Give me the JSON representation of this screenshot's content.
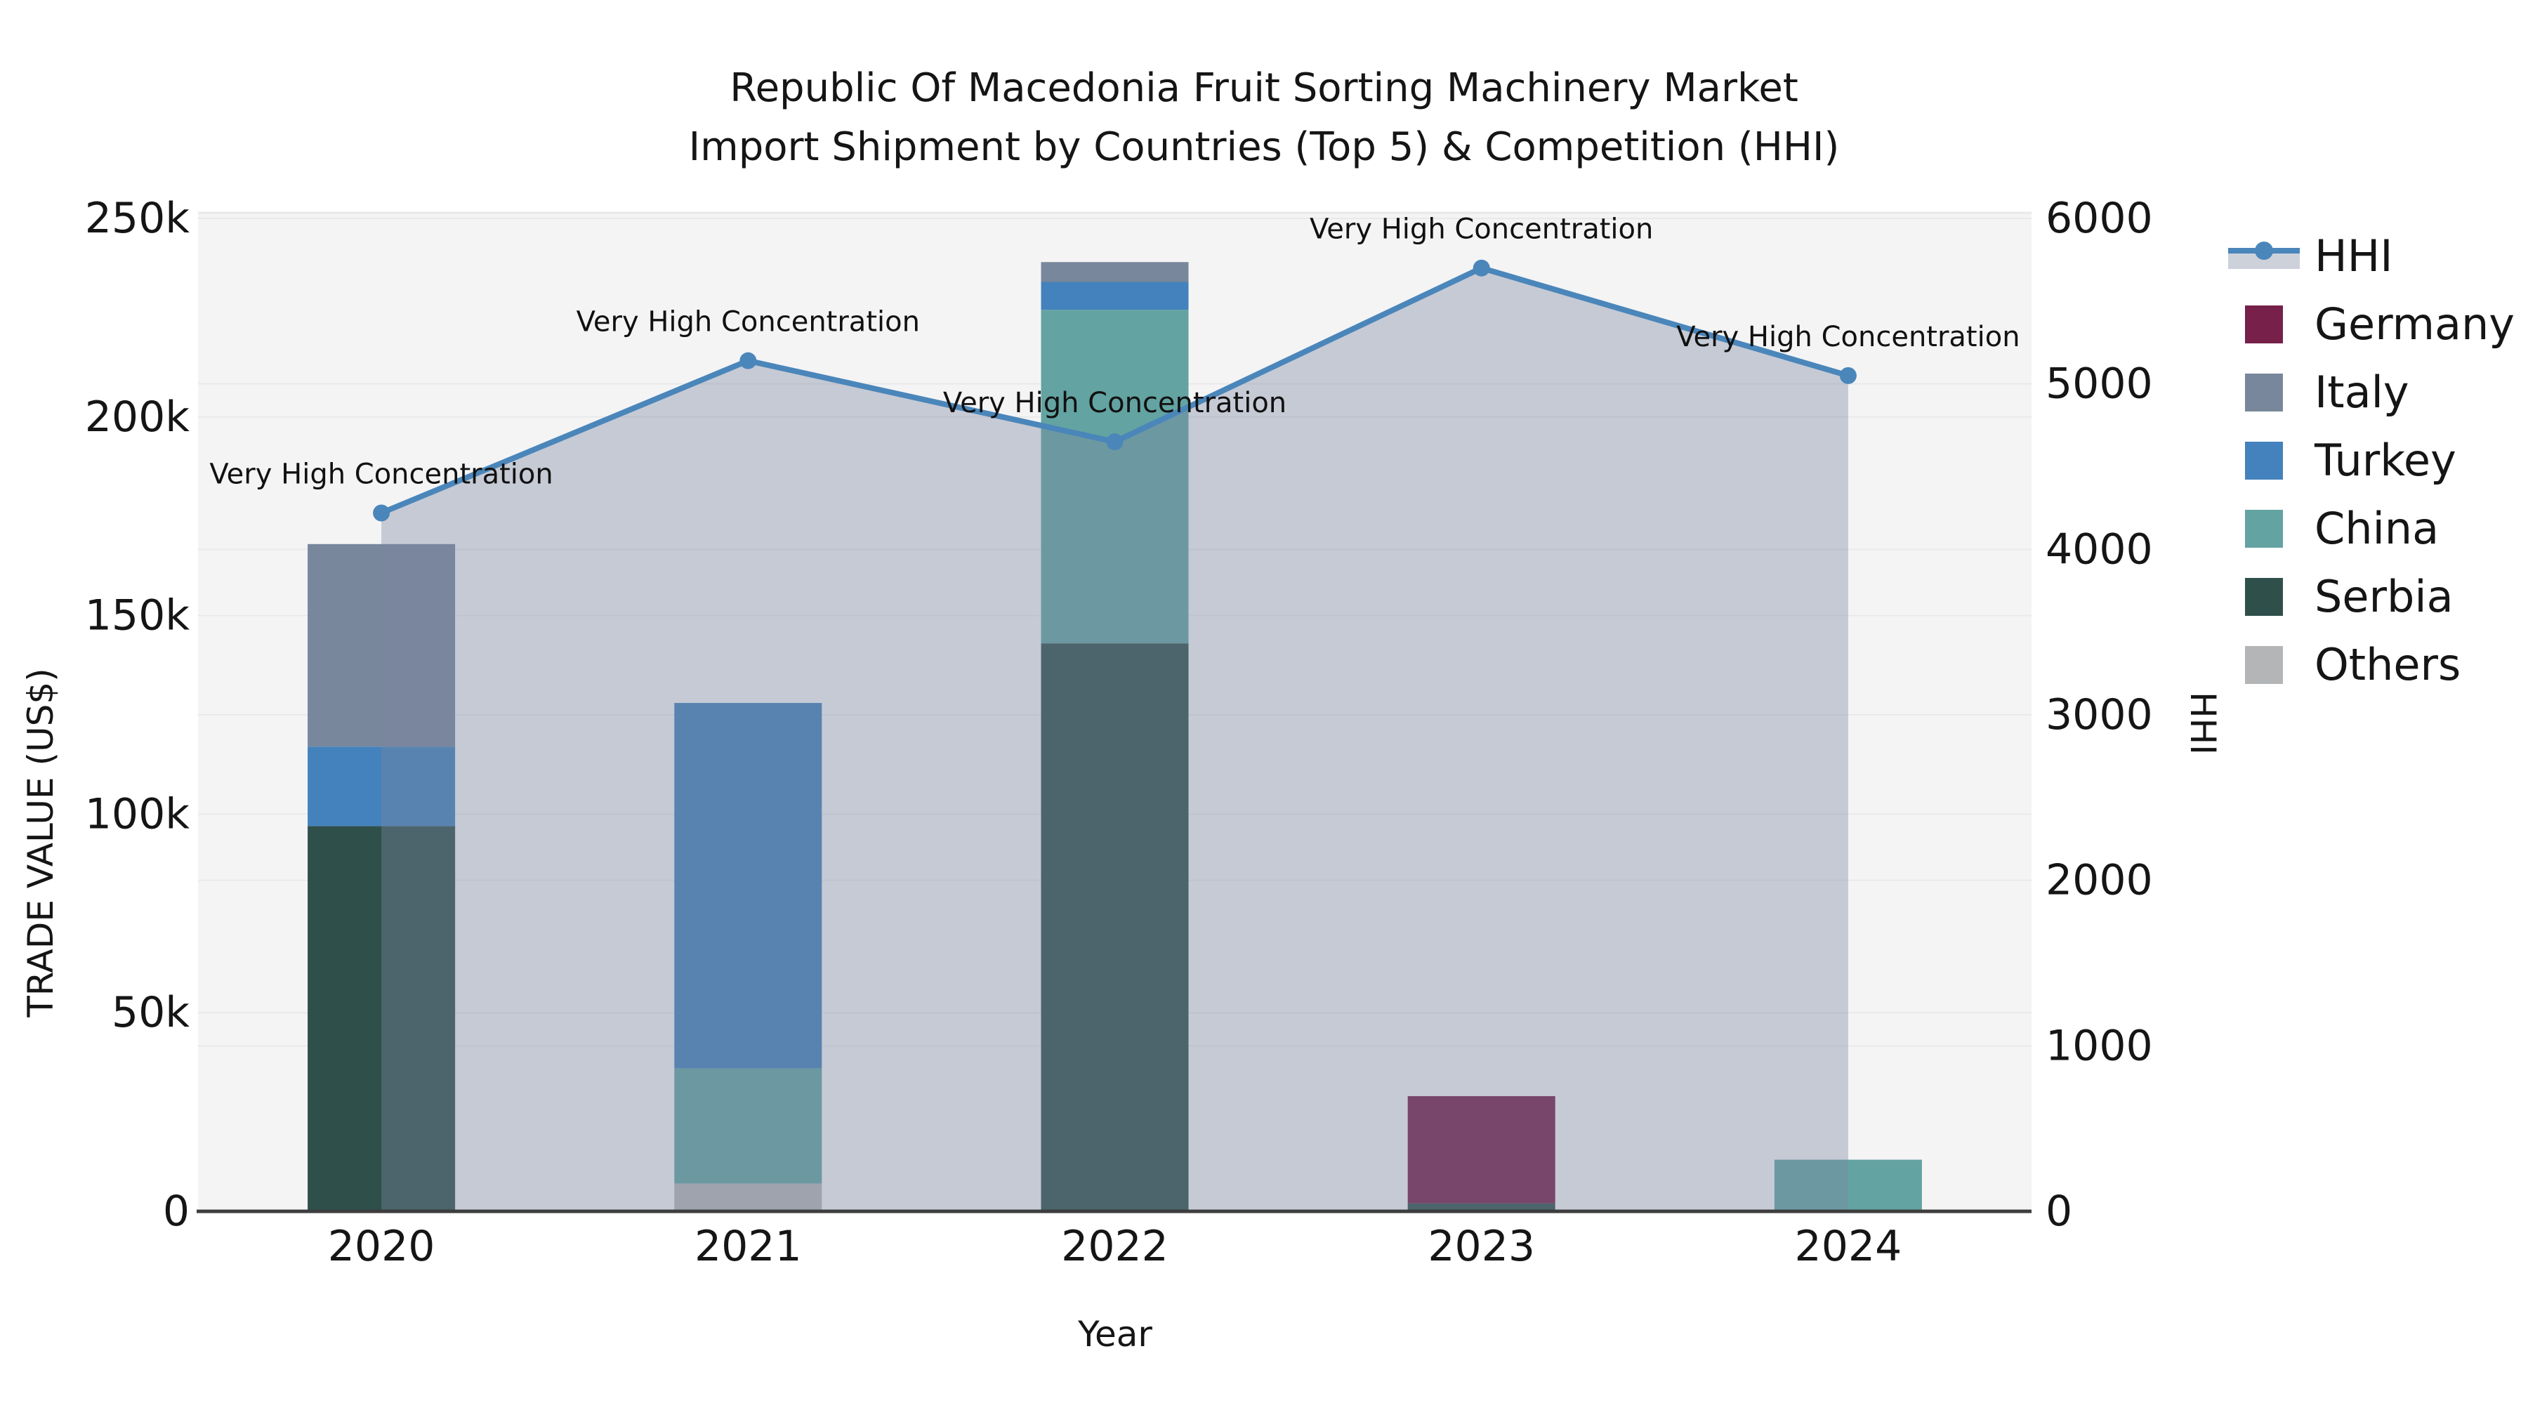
{
  "figure": {
    "title_line1": "Republic Of Macedonia Fruit Sorting Machinery Market",
    "title_line2": "Import Shipment by Countries (Top 5) & Competition (HHI)"
  },
  "axes": {
    "x_label": "Year",
    "y_left_label": "TRADE VALUE (US$)",
    "y_right_label": "HHI",
    "x_ticks": [
      "2020",
      "2021",
      "2022",
      "2023",
      "2024"
    ],
    "y_left_ticks": [
      {
        "v": 0,
        "label": "0"
      },
      {
        "v": 50000,
        "label": "50k"
      },
      {
        "v": 100000,
        "label": "100k"
      },
      {
        "v": 150000,
        "label": "150k"
      },
      {
        "v": 200000,
        "label": "200k"
      },
      {
        "v": 250000,
        "label": "250k"
      }
    ],
    "y_right_ticks": [
      {
        "v": 0,
        "label": "0"
      },
      {
        "v": 1000,
        "label": "1000"
      },
      {
        "v": 2000,
        "label": "2000"
      },
      {
        "v": 3000,
        "label": "3000"
      },
      {
        "v": 4000,
        "label": "4000"
      },
      {
        "v": 5000,
        "label": "5000"
      },
      {
        "v": 6000,
        "label": "6000"
      }
    ]
  },
  "chart_data": {
    "type": "bar+line",
    "title": "Republic Of Macedonia Fruit Sorting Machinery Market Import Shipment by Countries (Top 5) & Competition (HHI)",
    "xlabel": "Year",
    "ylabel_left": "TRADE VALUE (US$)",
    "ylabel_right": "HHI",
    "ylim_left": [
      0,
      250000
    ],
    "ylim_right": [
      0,
      6000
    ],
    "grid": true,
    "legend_position": "right",
    "categories": [
      "2020",
      "2021",
      "2022",
      "2023",
      "2024"
    ],
    "stack_order_bottom_to_top": [
      "Others",
      "Serbia",
      "China",
      "Turkey",
      "Italy",
      "Germany"
    ],
    "series": [
      {
        "name": "Germany",
        "type": "bar",
        "color": "#76204a",
        "values": [
          0,
          0,
          0,
          27000,
          0
        ]
      },
      {
        "name": "Italy",
        "type": "bar",
        "color": "#78879b",
        "values": [
          51000,
          0,
          5000,
          0,
          0
        ]
      },
      {
        "name": "Turkey",
        "type": "bar",
        "color": "#4382bc",
        "values": [
          20000,
          92000,
          7000,
          0,
          0
        ]
      },
      {
        "name": "China",
        "type": "bar",
        "color": "#63a3a2",
        "values": [
          0,
          29000,
          84000,
          0,
          13000
        ]
      },
      {
        "name": "Serbia",
        "type": "bar",
        "color": "#2f4f4b",
        "values": [
          97000,
          0,
          143000,
          2000,
          0
        ]
      },
      {
        "name": "Others",
        "type": "bar",
        "color": "#b3b5b7",
        "values": [
          0,
          7000,
          0,
          0,
          0
        ]
      }
    ],
    "bar_totals": [
      168000,
      128000,
      239000,
      29000,
      13000
    ],
    "line_series": {
      "name": "HHI",
      "color": "#4a86ba",
      "marker": "circle",
      "area_fill": "#7b86a0",
      "area_opacity": 0.38,
      "values": [
        4220,
        5140,
        4650,
        5700,
        5050
      ]
    },
    "annotations": [
      {
        "x": "2020",
        "text": "Very High Concentration"
      },
      {
        "x": "2021",
        "text": "Very High Concentration"
      },
      {
        "x": "2022",
        "text": "Very High Concentration"
      },
      {
        "x": "2023",
        "text": "Very High Concentration"
      },
      {
        "x": "2024",
        "text": "Very High Concentration"
      }
    ]
  },
  "legend": {
    "items": [
      {
        "label": "HHI",
        "swatch": "line-marker",
        "color": "#4a86ba"
      },
      {
        "label": "Germany",
        "swatch": "patch",
        "color": "#76204a"
      },
      {
        "label": "Italy",
        "swatch": "patch",
        "color": "#78879b"
      },
      {
        "label": "Turkey",
        "swatch": "patch",
        "color": "#4382bc"
      },
      {
        "label": "China",
        "swatch": "patch",
        "color": "#63a3a2"
      },
      {
        "label": "Serbia",
        "swatch": "patch",
        "color": "#2f4f4b"
      },
      {
        "label": "Others",
        "swatch": "patch",
        "color": "#b3b5b7"
      }
    ]
  },
  "colors": {
    "plot_bg": "#f4f4f5",
    "grid": "#e9e9ea",
    "axis_line": "#3d3d3d",
    "text": "#151515",
    "annotation_text": "#111111"
  }
}
